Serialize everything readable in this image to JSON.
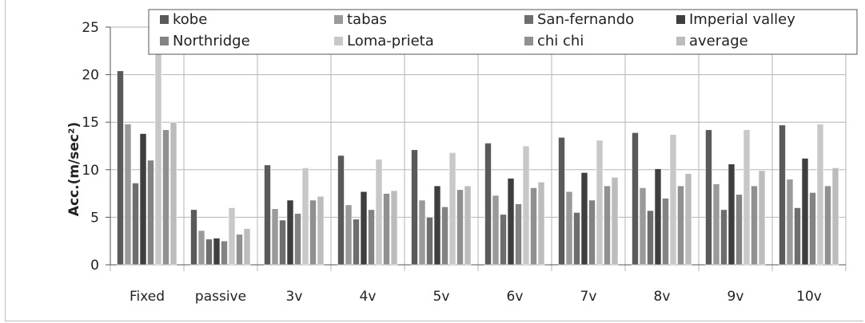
{
  "chart_data": {
    "type": "bar",
    "title": "",
    "xlabel": "",
    "ylabel": "Acc.(m/sec²)",
    "ylim": [
      0,
      25
    ],
    "yticks": [
      "0",
      "5",
      "10",
      "15",
      "20",
      "25"
    ],
    "grid": true,
    "legend_position": "top",
    "categories": [
      "Fixed",
      "passive",
      "3v",
      "4v",
      "5v",
      "6v",
      "7v",
      "8v",
      "9v",
      "10v"
    ],
    "series": [
      {
        "name": "kobe",
        "color": "#5a5a5a",
        "values": [
          20.4,
          5.8,
          10.5,
          11.5,
          12.1,
          12.8,
          13.4,
          13.9,
          14.2,
          14.7
        ]
      },
      {
        "name": "tabas",
        "color": "#9a9a9a",
        "values": [
          14.8,
          3.6,
          5.9,
          6.3,
          6.8,
          7.3,
          7.7,
          8.1,
          8.5,
          9.0
        ]
      },
      {
        "name": "San-fernando",
        "color": "#6e6e6e",
        "values": [
          8.6,
          2.7,
          4.7,
          4.8,
          5.0,
          5.3,
          5.5,
          5.7,
          5.8,
          6.0
        ]
      },
      {
        "name": "Imperial valley",
        "color": "#3e3e3e",
        "values": [
          13.8,
          2.8,
          6.8,
          7.7,
          8.3,
          9.1,
          9.7,
          10.1,
          10.6,
          11.2
        ]
      },
      {
        "name": "Northridge",
        "color": "#838383",
        "values": [
          11.0,
          2.5,
          5.4,
          5.8,
          6.1,
          6.4,
          6.8,
          7.0,
          7.4,
          7.6
        ]
      },
      {
        "name": "Loma-prieta",
        "color": "#c8c8c8",
        "values": [
          22.8,
          6.0,
          10.2,
          11.1,
          11.8,
          12.5,
          13.1,
          13.7,
          14.2,
          14.8
        ]
      },
      {
        "name": "chi chi",
        "color": "#909090",
        "values": [
          14.2,
          3.2,
          6.8,
          7.5,
          7.9,
          8.1,
          8.3,
          8.3,
          8.3,
          8.3
        ]
      },
      {
        "name": "average",
        "color": "#bcbcbc",
        "values": [
          15.0,
          3.8,
          7.2,
          7.8,
          8.3,
          8.7,
          9.2,
          9.6,
          9.9,
          10.2
        ]
      }
    ]
  }
}
